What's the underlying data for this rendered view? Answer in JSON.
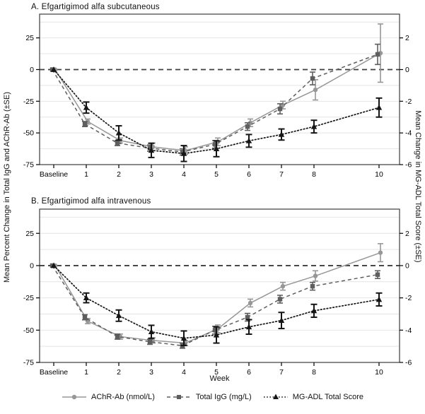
{
  "figure": {
    "left_axis_label": "Mean Percent Change in Total IgG and AChR-Ab (±SE)",
    "right_axis_label": "Mean Change in MG-ADL Total Score (±SE)",
    "x_axis_label": "Week",
    "legend": [
      {
        "label": "AChR-Ab (nmol/L)",
        "series": "achr",
        "marker": "circle",
        "line": "solid"
      },
      {
        "label": "Total IgG (mg/L)",
        "series": "igg",
        "marker": "square",
        "line": "dashed"
      },
      {
        "label": "MG-ADL Total Score",
        "series": "mgadl",
        "marker": "triangle",
        "line": "dotted"
      }
    ],
    "colors": {
      "achr": "#979797",
      "igg": "#5e5e5e",
      "mgadl": "#151515",
      "grid": "#e4e4e4",
      "axis": "#3d3d3d"
    }
  },
  "chart_data": [
    {
      "type": "line",
      "title": "A. Efgartigimod alfa subcutaneous",
      "x_categories": [
        "Baseline",
        "1",
        "2",
        "3",
        "4",
        "5",
        "6",
        "7",
        "8",
        "10"
      ],
      "x_positions": [
        0,
        1,
        2,
        3,
        4,
        5,
        6,
        7,
        8,
        10
      ],
      "left_ylim": [
        -75,
        43.75
      ],
      "left_yticks": [
        25,
        0,
        -25,
        -50,
        -75
      ],
      "right_yticks": [
        2,
        0,
        -2,
        -4,
        -6
      ],
      "right_to_left_scale": 12.5,
      "gridlines": [
        37.5,
        25,
        12.5,
        -12.5,
        -25,
        -37.5,
        -50,
        -62.5
      ],
      "zero_line": 0,
      "series": [
        {
          "name": "AChR-Ab (nmol/L)",
          "key": "achr",
          "axis": "left",
          "values": [
            0,
            -41,
            -56,
            -61,
            -64,
            -57,
            -42,
            -28,
            -16,
            13
          ],
          "se": [
            0,
            2,
            2,
            3,
            3,
            3,
            3,
            3,
            8,
            23
          ]
        },
        {
          "name": "Total IgG (mg/L)",
          "key": "igg",
          "axis": "left",
          "values": [
            0,
            -43,
            -58,
            -62,
            -65,
            -59,
            -45,
            -31,
            -7,
            12
          ],
          "se": [
            0,
            2,
            2,
            2.5,
            2.5,
            3,
            3,
            4,
            5,
            8
          ]
        },
        {
          "name": "MG-ADL Total Score",
          "key": "mgadl",
          "axis": "right",
          "values": [
            0,
            -2.4,
            -4.0,
            -5.1,
            -5.3,
            -5.0,
            -4.5,
            -4.1,
            -3.6,
            -2.4
          ],
          "se": [
            0,
            0.35,
            0.45,
            0.45,
            0.5,
            0.5,
            0.4,
            0.35,
            0.4,
            0.6
          ]
        }
      ]
    },
    {
      "type": "line",
      "title": "B. Efgartigimod alfa intravenous",
      "x_categories": [
        "Baseline",
        "1",
        "2",
        "3",
        "4",
        "5",
        "6",
        "7",
        "8",
        "10"
      ],
      "x_positions": [
        0,
        1,
        2,
        3,
        4,
        5,
        6,
        7,
        8,
        10
      ],
      "left_ylim": [
        -75,
        43.75
      ],
      "left_yticks": [
        25,
        0,
        -25,
        -50,
        -75
      ],
      "right_yticks": [
        2,
        0,
        -2,
        -4,
        -6
      ],
      "right_to_left_scale": 12.5,
      "gridlines": [
        37.5,
        25,
        12.5,
        -12.5,
        -25,
        -37.5,
        -50,
        -62.5
      ],
      "zero_line": 0,
      "series": [
        {
          "name": "AChR-Ab (nmol/L)",
          "key": "achr",
          "axis": "left",
          "values": [
            0,
            -43,
            -55,
            -58,
            -60,
            -49,
            -29,
            -16,
            -8,
            10
          ],
          "se": [
            0,
            2,
            2,
            2,
            2,
            3,
            3,
            3,
            4,
            7
          ]
        },
        {
          "name": "Total IgG (mg/L)",
          "key": "igg",
          "axis": "left",
          "values": [
            0,
            -40,
            -55,
            -59,
            -62,
            -50,
            -40,
            -26,
            -16,
            -7
          ],
          "se": [
            0,
            2,
            2,
            2,
            2,
            3,
            3,
            3,
            3,
            3
          ]
        },
        {
          "name": "MG-ADL Total Score",
          "key": "mgadl",
          "axis": "right",
          "values": [
            0,
            -2.0,
            -3.1,
            -4.1,
            -4.5,
            -4.3,
            -3.8,
            -3.4,
            -2.8,
            -2.1
          ],
          "se": [
            0,
            0.3,
            0.35,
            0.4,
            0.45,
            0.5,
            0.45,
            0.5,
            0.4,
            0.4
          ]
        }
      ]
    }
  ]
}
